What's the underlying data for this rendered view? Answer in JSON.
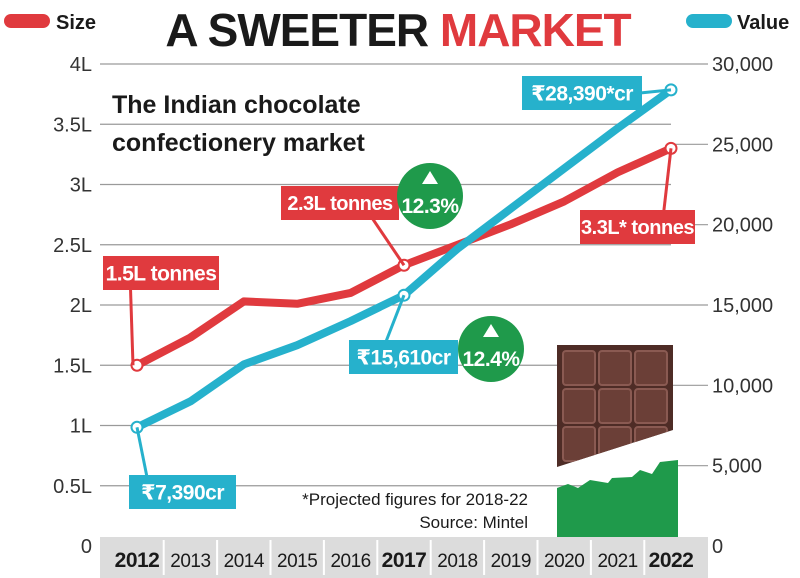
{
  "chart_data": {
    "type": "line",
    "title": {
      "part1": "A SWEETER ",
      "part2": "MARKET"
    },
    "subtitle_lines": [
      "The Indian chocolate",
      "confectionery market"
    ],
    "legend": {
      "left": "Size",
      "right": "Value"
    },
    "categories": [
      "2012",
      "2013",
      "2014",
      "2015",
      "2016",
      "2017",
      "2018",
      "2019",
      "2020",
      "2021",
      "2022"
    ],
    "bold_categories": [
      "2012",
      "2017",
      "2022"
    ],
    "y_left": {
      "ticks": [
        "0",
        "0.5L",
        "1L",
        "1.5L",
        "2L",
        "2.5L",
        "3L",
        "3.5L",
        "4L"
      ],
      "ylim": [
        0,
        4
      ]
    },
    "y_right": {
      "ticks": [
        "0",
        "5,000",
        "10,000",
        "15,000",
        "20,000",
        "25,000",
        "30,000"
      ],
      "ylim": [
        0,
        30000
      ]
    },
    "series": [
      {
        "name": "Size",
        "unit": "lakh tonnes",
        "axis": "left",
        "color": "#e03a3e",
        "values": [
          1.5,
          1.73,
          2.03,
          2.01,
          2.1,
          2.33,
          2.5,
          2.67,
          2.86,
          3.1,
          3.3
        ]
      },
      {
        "name": "Value",
        "unit": "₹ crore",
        "axis": "right",
        "color": "#26b1cc",
        "values": [
          7390,
          9000,
          11300,
          12500,
          14000,
          15610,
          18500,
          21000,
          23500,
          26000,
          28390
        ]
      }
    ],
    "annotations": {
      "size_2012": "1.5L tonnes",
      "size_2017": "2.3L tonnes",
      "size_2022": "3.3L* tonnes",
      "value_2012": "₹7,390cr",
      "value_2017": "₹15,610cr",
      "value_2022": "₹28,390*cr",
      "growth_size": "12.3%",
      "growth_value": "12.4%"
    },
    "footnote": "*Projected figures for 2018-22",
    "source": "Source: Mintel"
  },
  "colors": {
    "red": "#e03a3e",
    "blue": "#26b1cc",
    "green": "#1f9a4b",
    "chocolate": "#6b3f37",
    "chocolate_light": "#8a5a52",
    "dark": "#1a1a1a",
    "axis_text": "#333333"
  }
}
